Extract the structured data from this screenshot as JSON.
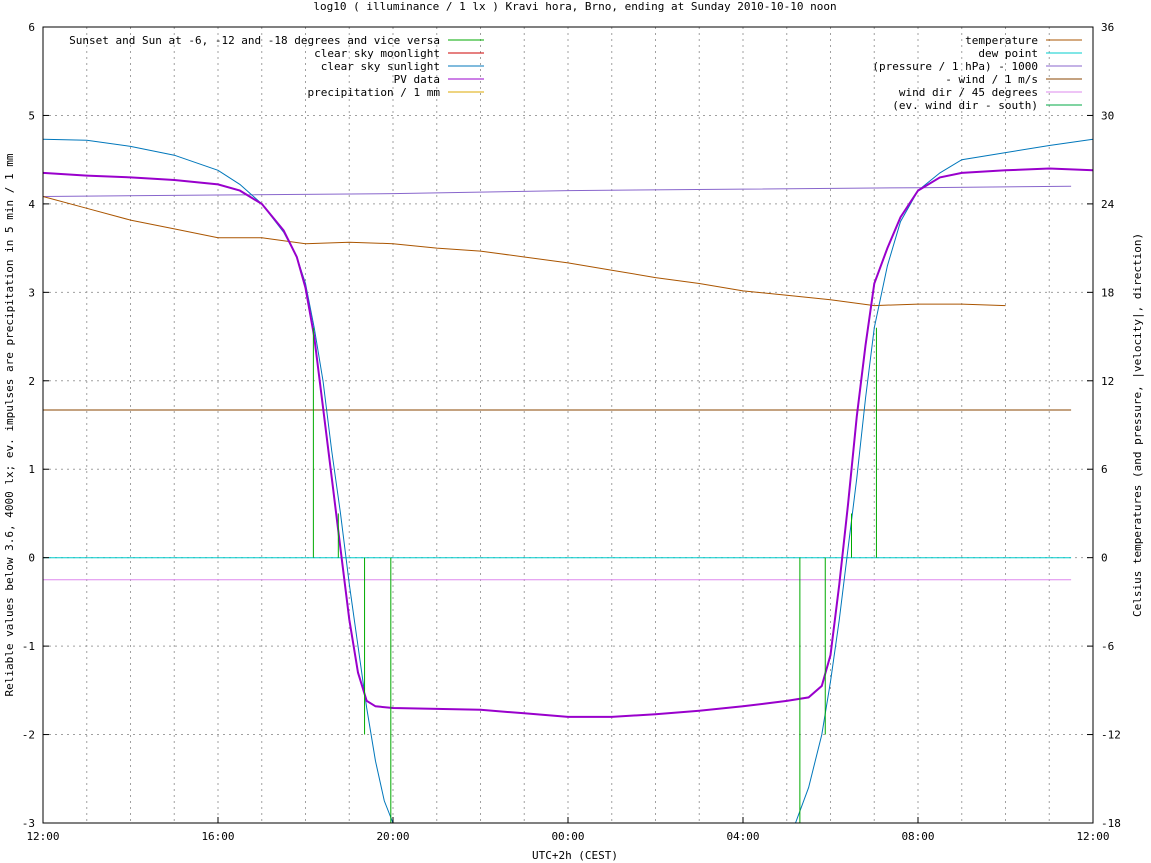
{
  "chart_data": {
    "type": "line",
    "title": "log10 ( illuminance / 1 lx ) Kravi hora, Brno, ending at Sunday 2010-10-10 noon",
    "xlabel": "UTC+2h (CEST)",
    "ylabel": "Reliable values below 3.6, 4000 lx; ev. impulses are precipitation in 5 min / 1 mm",
    "y2label": "Celsius temperatures (and pressure, |velocity|, direction)",
    "x_ticks": [
      "12:00",
      "16:00",
      "20:00",
      "00:00",
      "04:00",
      "08:00",
      "12:00"
    ],
    "xlim_hours": [
      12,
      36
    ],
    "ylim": [
      -3,
      6
    ],
    "y_ticks": [
      "-3",
      "-2",
      "-1",
      "0",
      "1",
      "2",
      "3",
      "4",
      "5",
      "6"
    ],
    "y2lim": [
      -18,
      36
    ],
    "y2_ticks": [
      "-18",
      "-12",
      "-6",
      "0",
      "6",
      "12",
      "18",
      "24",
      "30",
      "36"
    ],
    "grid": true,
    "legend_left": [
      {
        "label": "Sunset and Sun at -6, -12 and -18 degrees and vice versa",
        "color": "#00aa00"
      },
      {
        "label": "clear sky moonlight",
        "color": "#cc0000"
      },
      {
        "label": "clear sky sunlight",
        "color": "#0077bb"
      },
      {
        "label": "PV data",
        "color": "#9900cc"
      },
      {
        "label": "precipitation / 1 mm",
        "color": "#ddaa00"
      }
    ],
    "legend_right": [
      {
        "label": "temperature",
        "color": "#aa5500"
      },
      {
        "label": "dew point",
        "color": "#00cccc"
      },
      {
        "label": "(pressure / 1 hPa) - 1000",
        "color": "#8866cc"
      },
      {
        "label": "- wind / 1 m/s",
        "color": "#884400"
      },
      {
        "label": "wind dir / 45 degrees",
        "color": "#dd88ee"
      },
      {
        "label": "(ev. wind dir - south)",
        "color": "#00aa44"
      }
    ],
    "series": [
      {
        "name": "clear sky sunlight",
        "axis": "y1",
        "x": [
          12,
          13,
          14,
          15,
          16,
          16.5,
          17,
          17.5,
          17.8,
          18,
          18.2,
          18.4,
          18.6,
          18.8,
          19,
          19.2,
          19.4,
          19.6,
          19.8,
          20,
          29.2,
          29.5,
          29.8,
          30,
          30.2,
          30.4,
          30.6,
          30.8,
          31,
          31.3,
          31.6,
          32,
          32.5,
          33,
          34,
          35,
          36
        ],
        "y": [
          4.73,
          4.72,
          4.65,
          4.55,
          4.38,
          4.22,
          4.0,
          3.68,
          3.4,
          3.1,
          2.6,
          2.0,
          1.2,
          0.5,
          -0.3,
          -1.0,
          -1.7,
          -2.3,
          -2.75,
          -3.0,
          -3.0,
          -2.6,
          -2.0,
          -1.4,
          -0.7,
          0.1,
          0.9,
          1.8,
          2.6,
          3.3,
          3.8,
          4.15,
          4.35,
          4.5,
          4.58,
          4.66,
          4.73
        ]
      },
      {
        "name": "PV data",
        "axis": "y1",
        "x": [
          12,
          13,
          14,
          15,
          16,
          16.5,
          17,
          17.5,
          17.8,
          18,
          18.2,
          18.4,
          18.6,
          18.8,
          19,
          19.2,
          19.4,
          19.6,
          20,
          21,
          22,
          23,
          24,
          25,
          26,
          27,
          28,
          28.5,
          29,
          29.5,
          29.8,
          30,
          30.2,
          30.4,
          30.6,
          30.8,
          31,
          31.3,
          31.6,
          32,
          32.5,
          33,
          34,
          35,
          36
        ],
        "y": [
          4.35,
          4.32,
          4.3,
          4.27,
          4.22,
          4.15,
          4.0,
          3.7,
          3.4,
          3.05,
          2.5,
          1.7,
          0.9,
          0.1,
          -0.7,
          -1.3,
          -1.62,
          -1.68,
          -1.7,
          -1.71,
          -1.72,
          -1.76,
          -1.8,
          -1.8,
          -1.77,
          -1.73,
          -1.68,
          -1.65,
          -1.62,
          -1.58,
          -1.45,
          -1.1,
          -0.3,
          0.6,
          1.6,
          2.4,
          3.1,
          3.5,
          3.85,
          4.15,
          4.3,
          4.35,
          4.38,
          4.4,
          4.38
        ]
      },
      {
        "name": "(pressure / 1 hPa) - 1000",
        "axis": "y2",
        "x": [
          12,
          16,
          20,
          24,
          28,
          32,
          35.5
        ],
        "y": [
          24.5,
          24.6,
          24.7,
          24.9,
          25.0,
          25.1,
          25.2
        ]
      },
      {
        "name": "temperature",
        "axis": "y2",
        "x": [
          12,
          13,
          14,
          15,
          16,
          17,
          18,
          19,
          20,
          21,
          22,
          23,
          24,
          25,
          26,
          27,
          28,
          29,
          30,
          31,
          32,
          33,
          34
        ],
        "y": [
          24.5,
          23.7,
          22.9,
          22.3,
          21.7,
          21.7,
          21.3,
          21.4,
          21.3,
          21.0,
          20.8,
          20.4,
          20.0,
          19.5,
          19.0,
          18.6,
          18.1,
          17.8,
          17.5,
          17.1,
          17.2,
          17.2,
          17.1
        ]
      },
      {
        "name": "- wind / 1 m/s",
        "axis": "y1",
        "x": [
          12,
          35.5
        ],
        "y": [
          1.67,
          1.67
        ]
      },
      {
        "name": "dew point",
        "axis": "y1",
        "x": [
          12,
          35.5
        ],
        "y": [
          0,
          0
        ]
      },
      {
        "name": "wind dir / 45 degrees",
        "axis": "y1",
        "x": [
          12,
          35.5
        ],
        "y": [
          -0.25,
          -0.25
        ]
      }
    ],
    "sun_impulses": [
      {
        "x": 18.18,
        "from": 0,
        "to": 2.6
      },
      {
        "x": 18.75,
        "from": 0,
        "to": 0.5
      },
      {
        "x": 19.35,
        "from": 0,
        "to": -2.0
      },
      {
        "x": 19.95,
        "from": 0,
        "to": -3.0
      },
      {
        "x": 29.3,
        "from": 0,
        "to": -3.0
      },
      {
        "x": 29.88,
        "from": 0,
        "to": -2.0
      },
      {
        "x": 30.48,
        "from": 0,
        "to": 0.5
      },
      {
        "x": 31.05,
        "from": 0,
        "to": 2.6
      }
    ]
  }
}
